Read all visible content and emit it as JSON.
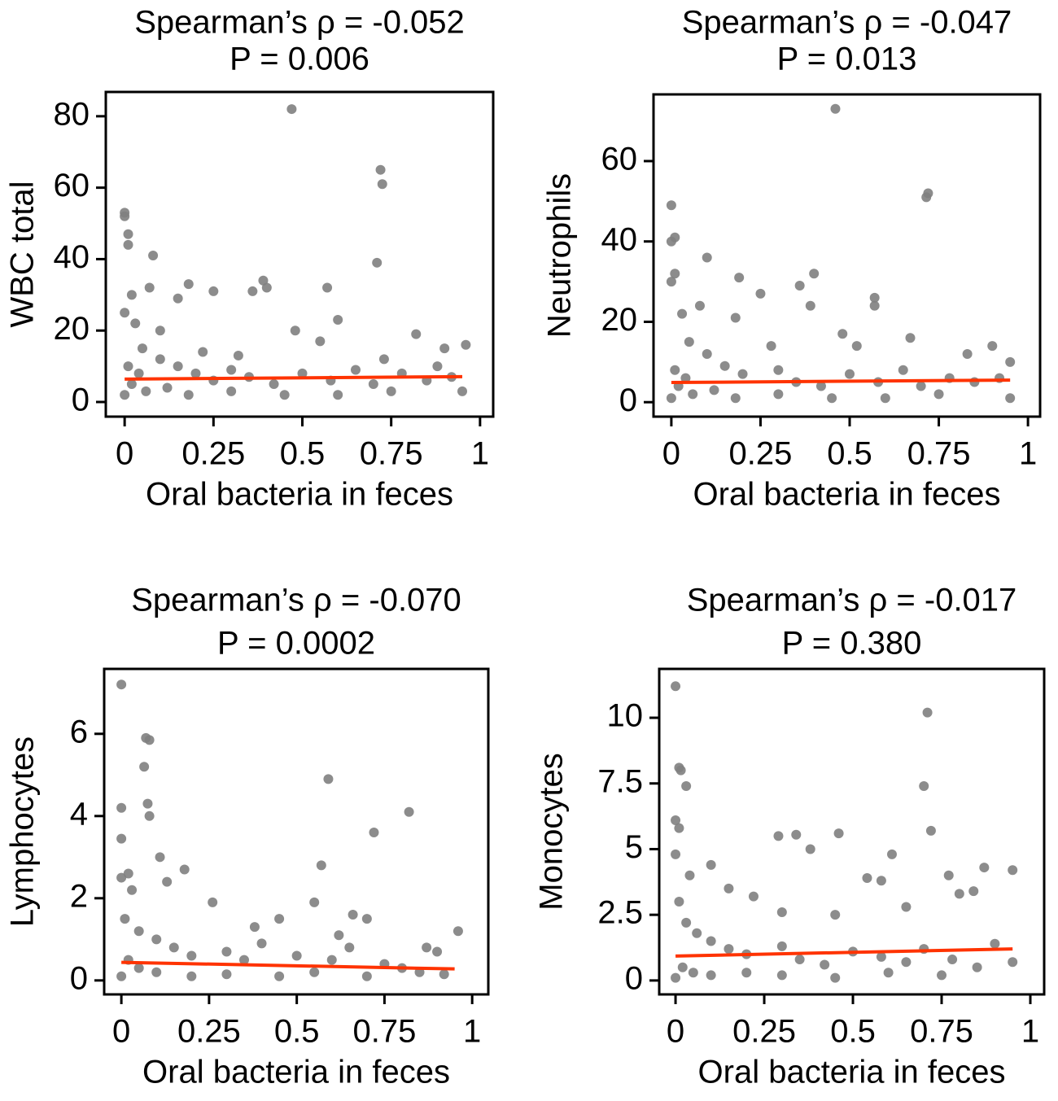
{
  "chart_data": [
    {
      "type": "scatter",
      "title": "Spearman’s ρ = -0.052",
      "subtitle": "P = 0.006",
      "x_label": "Oral bacteria in feces",
      "y_label": "WBC total",
      "xlim": [
        -0.053,
        1.037
      ],
      "ylim": [
        -4.1,
        86.8
      ],
      "xticks": [
        0,
        0.25,
        0.5,
        0.75,
        1
      ],
      "yticks": [
        0,
        20,
        40,
        60,
        80
      ],
      "points": {
        "color": "#808080",
        "x": [
          0.47,
          0.72,
          0.725,
          0.71,
          0,
          0,
          0.01,
          0.01,
          0.08,
          0.18,
          0.25,
          0.36,
          0.39,
          0.57,
          0.4,
          0.48,
          0.6,
          0.55,
          0.73,
          0.82,
          0.9,
          0.96,
          0.95,
          0.88,
          0.15,
          0.07,
          0.02,
          0,
          0.03,
          0.05,
          0.1,
          0.15,
          0.2,
          0.25,
          0.3,
          0.35,
          0.42,
          0.5,
          0.58,
          0.65,
          0.7,
          0.78,
          0.85,
          0.92,
          0.01,
          0.02,
          0.04,
          0.06,
          0.12,
          0.18,
          0.3,
          0.45,
          0.6,
          0.75,
          0,
          0.1,
          0.22,
          0.32
        ],
        "y": [
          82,
          65,
          61,
          39,
          53,
          52,
          47,
          44,
          41,
          33,
          31,
          31,
          34,
          32,
          32,
          20,
          23,
          17,
          12,
          19,
          15,
          16,
          3,
          10,
          29,
          32,
          30,
          25,
          22,
          15,
          12,
          10,
          8,
          6,
          9,
          7,
          5,
          8,
          6,
          9,
          5,
          8,
          6,
          7,
          10,
          5,
          8,
          3,
          4,
          2,
          3,
          2,
          2,
          3,
          2,
          20,
          14,
          13
        ]
      },
      "fit": {
        "color": "#ff3300",
        "x": [
          0,
          0.95
        ],
        "y": [
          6.4,
          7.1
        ]
      }
    },
    {
      "type": "scatter",
      "title": "Spearman’s ρ = -0.047",
      "subtitle": "P = 0.013",
      "x_label": "Oral bacteria in feces",
      "y_label": "Neutrophils",
      "xlim": [
        -0.05,
        1.034
      ],
      "ylim": [
        -3.6,
        76.6
      ],
      "xticks": [
        0,
        0.25,
        0.5,
        0.75,
        1
      ],
      "yticks": [
        0,
        20,
        40,
        60
      ],
      "points": {
        "color": "#808080",
        "x": [
          0.46,
          0.72,
          0.715,
          0,
          0.01,
          0,
          0.01,
          0.1,
          0,
          0.19,
          0.25,
          0.4,
          0.36,
          0.39,
          0.57,
          0.57,
          0.18,
          0.08,
          0.03,
          0.05,
          0.1,
          0.15,
          0.2,
          0.3,
          0.35,
          0.42,
          0.5,
          0.58,
          0.65,
          0.7,
          0.78,
          0.85,
          0.92,
          0.95,
          0.9,
          0.95,
          0.83,
          0.01,
          0.02,
          0.04,
          0.06,
          0.12,
          0.18,
          0.3,
          0.45,
          0.6,
          0.75,
          0,
          0.48,
          0.52,
          0.67,
          0.28
        ],
        "y": [
          73,
          52,
          51,
          49,
          41,
          40,
          32,
          36,
          30,
          31,
          27,
          32,
          29,
          24,
          26,
          24,
          21,
          24,
          22,
          15,
          12,
          9,
          7,
          8,
          5,
          4,
          7,
          5,
          8,
          4,
          6,
          5,
          6,
          10,
          14,
          1,
          12,
          8,
          4,
          6,
          2,
          3,
          1,
          2,
          1,
          1,
          2,
          1,
          17,
          14,
          16,
          14
        ]
      },
      "fit": {
        "color": "#ff3300",
        "x": [
          0,
          0.95
        ],
        "y": [
          4.9,
          5.5
        ]
      }
    },
    {
      "type": "scatter",
      "title": "Spearman’s ρ = -0.070",
      "subtitle": "P = 0.0002",
      "x_label": "Oral bacteria in feces",
      "y_label": "Lymphocytes",
      "xlim": [
        -0.049,
        1.046
      ],
      "ylim": [
        -0.34,
        7.58
      ],
      "xticks": [
        0,
        0.25,
        0.5,
        0.75,
        1
      ],
      "yticks": [
        0,
        2,
        4,
        6
      ],
      "points": {
        "color": "#808080",
        "x": [
          0,
          0.07,
          0.08,
          0.065,
          0.075,
          0.08,
          0,
          0,
          0.11,
          0.59,
          0.82,
          0.72,
          0.57,
          0.18,
          0.02,
          0,
          0.03,
          0.13,
          0.26,
          0.55,
          0.45,
          0.66,
          0.7,
          0.96,
          0.87,
          0.9,
          0.01,
          0.05,
          0.1,
          0.15,
          0.2,
          0.3,
          0.35,
          0.4,
          0.5,
          0.6,
          0.65,
          0.75,
          0.8,
          0.85,
          0.92,
          0.02,
          0.05,
          0.1,
          0.2,
          0.3,
          0.45,
          0.55,
          0.7,
          0,
          0.38,
          0.62
        ],
        "y": [
          7.2,
          5.9,
          5.85,
          5.2,
          4.3,
          4.0,
          4.2,
          3.45,
          3.0,
          4.9,
          4.1,
          3.6,
          2.8,
          2.7,
          2.6,
          2.5,
          2.2,
          2.4,
          1.9,
          1.9,
          1.5,
          1.6,
          1.5,
          1.2,
          0.8,
          0.7,
          1.5,
          1.2,
          1.0,
          0.8,
          0.6,
          0.7,
          0.5,
          0.9,
          0.6,
          0.5,
          0.8,
          0.4,
          0.3,
          0.2,
          0.15,
          0.5,
          0.3,
          0.2,
          0.1,
          0.15,
          0.1,
          0.2,
          0.1,
          0.1,
          1.3,
          1.1
        ]
      },
      "fit": {
        "color": "#ff3300",
        "x": [
          0,
          0.95
        ],
        "y": [
          0.44,
          0.28
        ]
      }
    },
    {
      "type": "scatter",
      "title": "Spearman’s ρ = -0.017",
      "subtitle": "P = 0.380",
      "x_label": "Oral bacteria in feces",
      "y_label": "Monocytes",
      "xlim": [
        -0.046,
        1.039
      ],
      "ylim": [
        -0.53,
        11.86
      ],
      "xticks": [
        0,
        0.25,
        0.5,
        0.75,
        1
      ],
      "yticks": [
        0,
        2.5,
        5,
        7.5,
        10
      ],
      "points": {
        "color": "#808080",
        "x": [
          0,
          0.71,
          0.01,
          0.015,
          0.03,
          0.7,
          0.72,
          0,
          0.01,
          0.29,
          0.34,
          0.46,
          0.38,
          0.61,
          0.87,
          0.95,
          0.77,
          0.54,
          0.58,
          0,
          0.04,
          0.1,
          0.15,
          0.22,
          0.3,
          0.45,
          0.65,
          0.8,
          0.84,
          0.9,
          0.95,
          0.01,
          0.03,
          0.06,
          0.1,
          0.15,
          0.2,
          0.3,
          0.35,
          0.42,
          0.5,
          0.58,
          0.65,
          0.7,
          0.78,
          0.85,
          0.02,
          0.05,
          0.1,
          0.2,
          0.3,
          0.45,
          0.6,
          0.75,
          0
        ],
        "y": [
          11.2,
          10.2,
          8.1,
          8.0,
          7.4,
          7.4,
          5.7,
          6.1,
          5.8,
          5.5,
          5.55,
          5.6,
          5.0,
          4.8,
          4.3,
          4.2,
          4.0,
          3.9,
          3.8,
          4.8,
          4.0,
          4.4,
          3.5,
          3.2,
          2.6,
          2.5,
          2.8,
          3.3,
          3.4,
          1.4,
          0.7,
          3.0,
          2.2,
          1.8,
          1.5,
          1.2,
          1.0,
          1.3,
          0.8,
          0.6,
          1.1,
          0.9,
          0.7,
          1.2,
          0.8,
          0.5,
          0.5,
          0.3,
          0.2,
          0.3,
          0.2,
          0.1,
          0.3,
          0.2,
          0.1
        ]
      },
      "fit": {
        "color": "#ff3300",
        "x": [
          0,
          0.95
        ],
        "y": [
          0.93,
          1.2
        ]
      }
    }
  ]
}
